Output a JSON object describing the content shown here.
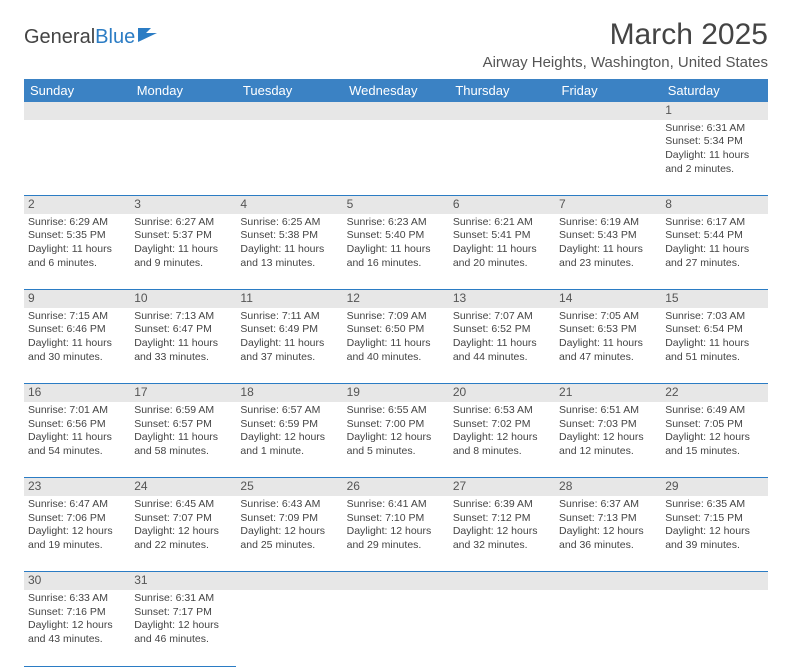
{
  "logo": {
    "part1": "General",
    "part2": "Blue"
  },
  "title": "March 2025",
  "location": "Airway Heights, Washington, United States",
  "header_bg": "#3b82c4",
  "header_fg": "#ffffff",
  "daynum_bg": "#e7e7e7",
  "border_color": "#2b7cc4",
  "weekdays": [
    "Sunday",
    "Monday",
    "Tuesday",
    "Wednesday",
    "Thursday",
    "Friday",
    "Saturday"
  ],
  "weeks": [
    [
      null,
      null,
      null,
      null,
      null,
      null,
      {
        "n": "1",
        "sr": "Sunrise: 6:31 AM",
        "ss": "Sunset: 5:34 PM",
        "dl": "Daylight: 11 hours and 2 minutes."
      }
    ],
    [
      {
        "n": "2",
        "sr": "Sunrise: 6:29 AM",
        "ss": "Sunset: 5:35 PM",
        "dl": "Daylight: 11 hours and 6 minutes."
      },
      {
        "n": "3",
        "sr": "Sunrise: 6:27 AM",
        "ss": "Sunset: 5:37 PM",
        "dl": "Daylight: 11 hours and 9 minutes."
      },
      {
        "n": "4",
        "sr": "Sunrise: 6:25 AM",
        "ss": "Sunset: 5:38 PM",
        "dl": "Daylight: 11 hours and 13 minutes."
      },
      {
        "n": "5",
        "sr": "Sunrise: 6:23 AM",
        "ss": "Sunset: 5:40 PM",
        "dl": "Daylight: 11 hours and 16 minutes."
      },
      {
        "n": "6",
        "sr": "Sunrise: 6:21 AM",
        "ss": "Sunset: 5:41 PM",
        "dl": "Daylight: 11 hours and 20 minutes."
      },
      {
        "n": "7",
        "sr": "Sunrise: 6:19 AM",
        "ss": "Sunset: 5:43 PM",
        "dl": "Daylight: 11 hours and 23 minutes."
      },
      {
        "n": "8",
        "sr": "Sunrise: 6:17 AM",
        "ss": "Sunset: 5:44 PM",
        "dl": "Daylight: 11 hours and 27 minutes."
      }
    ],
    [
      {
        "n": "9",
        "sr": "Sunrise: 7:15 AM",
        "ss": "Sunset: 6:46 PM",
        "dl": "Daylight: 11 hours and 30 minutes."
      },
      {
        "n": "10",
        "sr": "Sunrise: 7:13 AM",
        "ss": "Sunset: 6:47 PM",
        "dl": "Daylight: 11 hours and 33 minutes."
      },
      {
        "n": "11",
        "sr": "Sunrise: 7:11 AM",
        "ss": "Sunset: 6:49 PM",
        "dl": "Daylight: 11 hours and 37 minutes."
      },
      {
        "n": "12",
        "sr": "Sunrise: 7:09 AM",
        "ss": "Sunset: 6:50 PM",
        "dl": "Daylight: 11 hours and 40 minutes."
      },
      {
        "n": "13",
        "sr": "Sunrise: 7:07 AM",
        "ss": "Sunset: 6:52 PM",
        "dl": "Daylight: 11 hours and 44 minutes."
      },
      {
        "n": "14",
        "sr": "Sunrise: 7:05 AM",
        "ss": "Sunset: 6:53 PM",
        "dl": "Daylight: 11 hours and 47 minutes."
      },
      {
        "n": "15",
        "sr": "Sunrise: 7:03 AM",
        "ss": "Sunset: 6:54 PM",
        "dl": "Daylight: 11 hours and 51 minutes."
      }
    ],
    [
      {
        "n": "16",
        "sr": "Sunrise: 7:01 AM",
        "ss": "Sunset: 6:56 PM",
        "dl": "Daylight: 11 hours and 54 minutes."
      },
      {
        "n": "17",
        "sr": "Sunrise: 6:59 AM",
        "ss": "Sunset: 6:57 PM",
        "dl": "Daylight: 11 hours and 58 minutes."
      },
      {
        "n": "18",
        "sr": "Sunrise: 6:57 AM",
        "ss": "Sunset: 6:59 PM",
        "dl": "Daylight: 12 hours and 1 minute."
      },
      {
        "n": "19",
        "sr": "Sunrise: 6:55 AM",
        "ss": "Sunset: 7:00 PM",
        "dl": "Daylight: 12 hours and 5 minutes."
      },
      {
        "n": "20",
        "sr": "Sunrise: 6:53 AM",
        "ss": "Sunset: 7:02 PM",
        "dl": "Daylight: 12 hours and 8 minutes."
      },
      {
        "n": "21",
        "sr": "Sunrise: 6:51 AM",
        "ss": "Sunset: 7:03 PM",
        "dl": "Daylight: 12 hours and 12 minutes."
      },
      {
        "n": "22",
        "sr": "Sunrise: 6:49 AM",
        "ss": "Sunset: 7:05 PM",
        "dl": "Daylight: 12 hours and 15 minutes."
      }
    ],
    [
      {
        "n": "23",
        "sr": "Sunrise: 6:47 AM",
        "ss": "Sunset: 7:06 PM",
        "dl": "Daylight: 12 hours and 19 minutes."
      },
      {
        "n": "24",
        "sr": "Sunrise: 6:45 AM",
        "ss": "Sunset: 7:07 PM",
        "dl": "Daylight: 12 hours and 22 minutes."
      },
      {
        "n": "25",
        "sr": "Sunrise: 6:43 AM",
        "ss": "Sunset: 7:09 PM",
        "dl": "Daylight: 12 hours and 25 minutes."
      },
      {
        "n": "26",
        "sr": "Sunrise: 6:41 AM",
        "ss": "Sunset: 7:10 PM",
        "dl": "Daylight: 12 hours and 29 minutes."
      },
      {
        "n": "27",
        "sr": "Sunrise: 6:39 AM",
        "ss": "Sunset: 7:12 PM",
        "dl": "Daylight: 12 hours and 32 minutes."
      },
      {
        "n": "28",
        "sr": "Sunrise: 6:37 AM",
        "ss": "Sunset: 7:13 PM",
        "dl": "Daylight: 12 hours and 36 minutes."
      },
      {
        "n": "29",
        "sr": "Sunrise: 6:35 AM",
        "ss": "Sunset: 7:15 PM",
        "dl": "Daylight: 12 hours and 39 minutes."
      }
    ],
    [
      {
        "n": "30",
        "sr": "Sunrise: 6:33 AM",
        "ss": "Sunset: 7:16 PM",
        "dl": "Daylight: 12 hours and 43 minutes."
      },
      {
        "n": "31",
        "sr": "Sunrise: 6:31 AM",
        "ss": "Sunset: 7:17 PM",
        "dl": "Daylight: 12 hours and 46 minutes."
      },
      null,
      null,
      null,
      null,
      null
    ]
  ]
}
